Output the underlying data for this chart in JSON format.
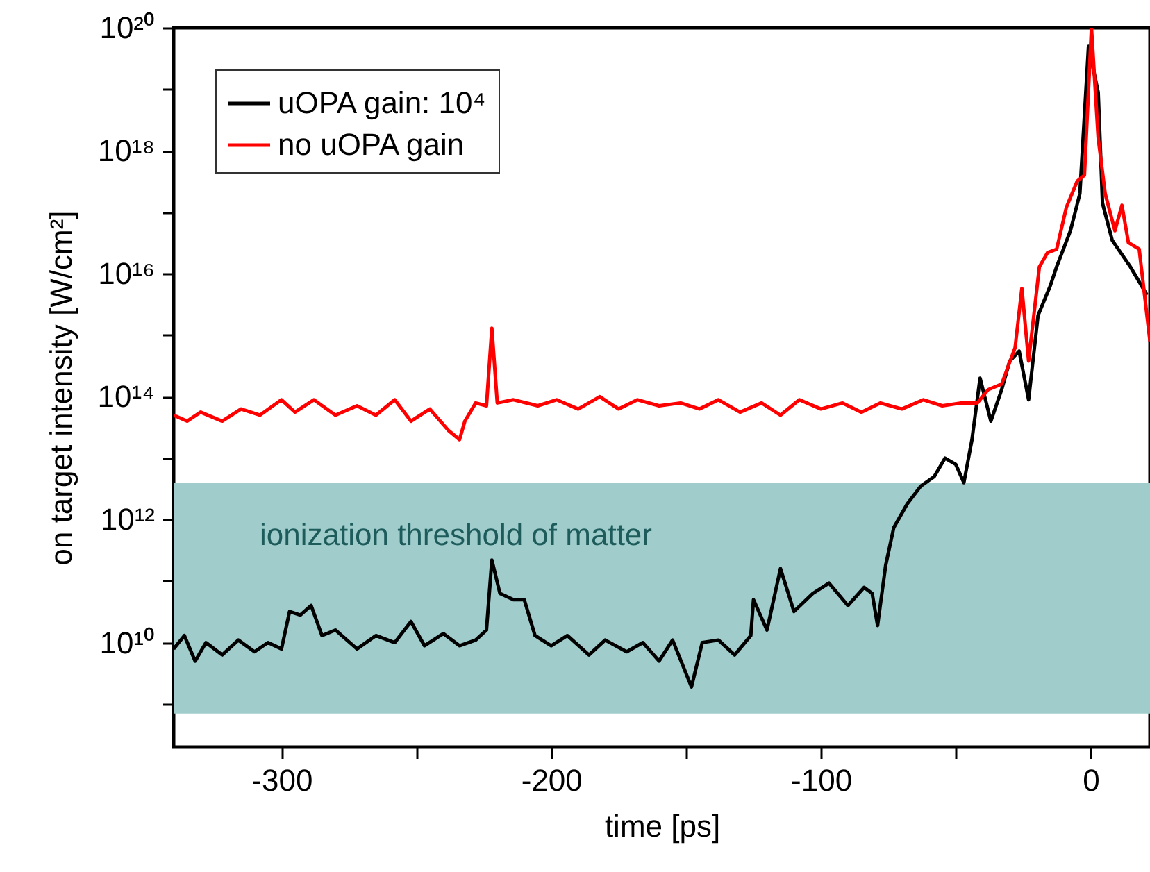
{
  "chart_data": {
    "type": "line",
    "xlabel": "time [ps]",
    "ylabel": "on target intensity [W/cm²]",
    "xlim": [
      -340,
      22
    ],
    "ylim": [
      200000000.0,
      1e+20
    ],
    "log": "y",
    "grid": false,
    "legend": "top left",
    "line_style": "solid",
    "marker": "none",
    "xticks": [
      -300,
      {
        "value": -250,
        "label": null
      },
      -200,
      {
        "value": -150,
        "label": null
      },
      -100,
      {
        "value": -50,
        "label": null
      },
      0
    ],
    "yticks": [
      {
        "value": 1000000000.0,
        "label": null
      },
      {
        "value": 10000000000.0,
        "label": "10¹⁰"
      },
      {
        "value": 100000000000.0,
        "label": null
      },
      {
        "value": 1000000000000.0,
        "label": "10¹²"
      },
      {
        "value": 10000000000000.0,
        "label": null
      },
      {
        "value": 100000000000000.0,
        "label": "10¹⁴"
      },
      {
        "value": 1000000000000000.0,
        "label": null
      },
      {
        "value": 1e+16,
        "label": "10¹⁶"
      },
      {
        "value": 1e+17,
        "label": null
      },
      {
        "value": 1e+18,
        "label": "10¹⁸"
      },
      {
        "value": 1e+19,
        "label": null
      },
      {
        "value": 1e+20,
        "label": "10²⁰"
      }
    ],
    "bands": [
      {
        "axis": "y",
        "from": 700000000.0,
        "to": 4000000000000.0,
        "label": "ionization threshold of matter",
        "color": "#a0cccc"
      }
    ],
    "series": [
      {
        "name": "uOPA gain: 10⁴",
        "color": "#000000",
        "x": [
          -340,
          -336,
          -332,
          -328,
          -322,
          -316,
          -310,
          -305,
          -300,
          -297,
          -293,
          -289,
          -285,
          -280,
          -272,
          -265,
          -258,
          -252,
          -247,
          -240,
          -234,
          -228,
          -224,
          -222,
          -219,
          -214,
          -210,
          -206,
          -200,
          -194,
          -186,
          -180,
          -172,
          -166,
          -160,
          -155,
          -148,
          -144,
          -138,
          -132,
          -126,
          -125,
          -120,
          -115,
          -110,
          -103,
          -97,
          -90,
          -84,
          -81,
          -79,
          -76,
          -73,
          -68,
          -63,
          -58,
          -54,
          -50,
          -47,
          -44,
          -41,
          -37,
          -33,
          -30,
          -26.5,
          -23,
          -19.5,
          -15,
          -12.6,
          -7.5,
          -4,
          -0.8,
          2.8,
          4.4,
          8,
          14.7,
          20.9
        ],
        "values": [
          7900000000.0,
          13000000000.0,
          5000000000.0,
          10000000000.0,
          6300000000.0,
          11000000000.0,
          7100000000.0,
          10000000000.0,
          7900000000.0,
          32000000000.0,
          28000000000.0,
          40000000000.0,
          13000000000.0,
          16000000000.0,
          7900000000.0,
          13000000000.0,
          10000000000.0,
          22000000000.0,
          8900000000.0,
          14000000000.0,
          8900000000.0,
          11000000000.0,
          16000000000.0,
          220000000000.0,
          63000000000.0,
          50000000000.0,
          50000000000.0,
          13000000000.0,
          8900000000.0,
          13000000000.0,
          6300000000.0,
          11000000000.0,
          7100000000.0,
          10000000000.0,
          5000000000.0,
          11000000000.0,
          1900000000.0,
          10000000000.0,
          11000000000.0,
          6300000000.0,
          13000000000.0,
          50000000000.0,
          16000000000.0,
          160000000000.0,
          32000000000.0,
          63000000000.0,
          93000000000.0,
          40000000000.0,
          79000000000.0,
          63000000000.0,
          19000000000.0,
          180000000000.0,
          740000000000.0,
          1800000000000.0,
          3500000000000.0,
          5000000000000.0,
          10000000000000.0,
          7900000000000.0,
          4000000000000.0,
          20000000000000.0,
          200000000000000.0,
          40000000000000.0,
          130000000000000.0,
          380000000000000.0,
          550000000000000.0,
          89000000000000.0,
          2100000000000000.0,
          6300000000000000.0,
          1.3e+16,
          5e+16,
          2e+17,
          5e+19,
          8.9e+18,
          1.4e+17,
          3.5e+16,
          1.3e+16,
          4500000000000000.0
        ]
      },
      {
        "name": "no uOPA gain",
        "color": "#ff0000",
        "x": [
          -340,
          -335,
          -330,
          -322,
          -315,
          -308,
          -300,
          -295,
          -288,
          -280,
          -272,
          -265,
          -258,
          -252,
          -245,
          -238,
          -234,
          -232,
          -228,
          -224,
          -222,
          -220,
          -214,
          -205,
          -198,
          -190,
          -182,
          -175,
          -168,
          -160,
          -152,
          -145,
          -138,
          -130,
          -122,
          -115,
          -108,
          -100,
          -92,
          -85,
          -78,
          -70,
          -62,
          -55,
          -48,
          -42,
          -38,
          -33,
          -28,
          -25.5,
          -23,
          -19,
          -16,
          -12.6,
          -9,
          -5,
          -2.3,
          0.3,
          2.8,
          5.4,
          9,
          11.6,
          14,
          18,
          22
        ],
        "values": [
          50000000000000.0,
          40000000000000.0,
          56000000000000.0,
          40000000000000.0,
          63000000000000.0,
          50000000000000.0,
          89000000000000.0,
          56000000000000.0,
          89000000000000.0,
          50000000000000.0,
          71000000000000.0,
          50000000000000.0,
          89000000000000.0,
          40000000000000.0,
          63000000000000.0,
          28000000000000.0,
          20000000000000.0,
          40000000000000.0,
          79000000000000.0,
          71000000000000.0,
          1300000000000000.0,
          79000000000000.0,
          89000000000000.0,
          71000000000000.0,
          89000000000000.0,
          63000000000000.0,
          100000000000000.0,
          63000000000000.0,
          89000000000000.0,
          71000000000000.0,
          79000000000000.0,
          63000000000000.0,
          89000000000000.0,
          56000000000000.0,
          79000000000000.0,
          50000000000000.0,
          89000000000000.0,
          63000000000000.0,
          79000000000000.0,
          56000000000000.0,
          79000000000000.0,
          63000000000000.0,
          89000000000000.0,
          71000000000000.0,
          79000000000000.0,
          79000000000000.0,
          130000000000000.0,
          160000000000000.0,
          630000000000000.0,
          5800000000000000.0,
          380000000000000.0,
          1.3e+16,
          2.2e+16,
          2.5e+16,
          1.2e+17,
          3.2e+17,
          4e+17,
          1e+20,
          1.6e+18,
          2e+17,
          5e+16,
          1.3e+17,
          3.2e+16,
          2.5e+16,
          790000000000000.0
        ]
      }
    ]
  }
}
